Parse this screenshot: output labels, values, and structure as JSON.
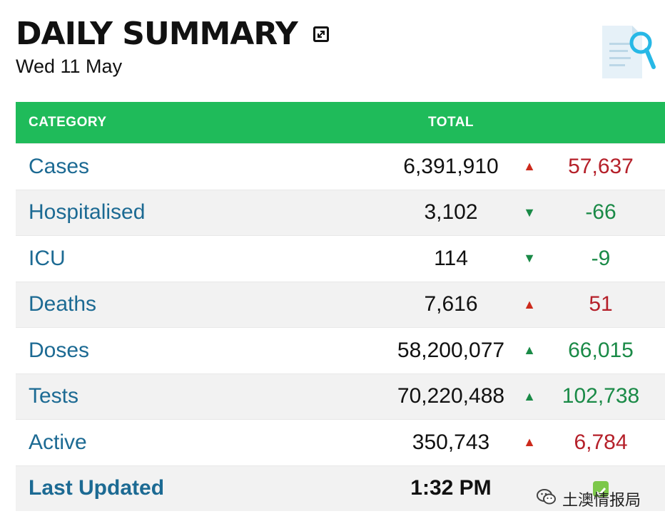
{
  "header": {
    "title": "DAILY SUMMARY",
    "date": "Wed 11 May"
  },
  "table": {
    "columns": {
      "category": "CATEGORY",
      "total": "TOTAL"
    },
    "rows": [
      {
        "category": "Cases",
        "total": "6,391,910",
        "trend": "up",
        "change": "57,637",
        "change_color": "red"
      },
      {
        "category": "Hospitalised",
        "total": "3,102",
        "trend": "down",
        "change": "-66",
        "change_color": "green"
      },
      {
        "category": "ICU",
        "total": "114",
        "trend": "down",
        "change": "-9",
        "change_color": "green"
      },
      {
        "category": "Deaths",
        "total": "7,616",
        "trend": "up",
        "change": "51",
        "change_color": "red"
      },
      {
        "category": "Doses",
        "total": "58,200,077",
        "trend": "up",
        "change": "66,015",
        "change_color": "green"
      },
      {
        "category": "Tests",
        "total": "70,220,488",
        "trend": "up",
        "change": "102,738",
        "change_color": "green"
      },
      {
        "category": "Active",
        "total": "350,743",
        "trend": "up",
        "change": "6,784",
        "change_color": "red"
      }
    ],
    "last_updated": {
      "label": "Last Updated",
      "value": "1:32 PM"
    }
  },
  "watermark": {
    "text": "土澳情报局"
  },
  "colors": {
    "header_bg": "#1fbb5a",
    "category_text": "#1c6a93",
    "up_arrow": "#cc2a1c",
    "positive_change_red": "#b5202a",
    "green_change": "#1a8a47"
  }
}
